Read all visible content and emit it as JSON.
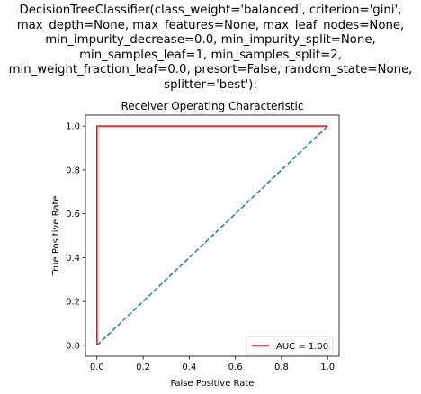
{
  "figure": {
    "suptitle_lines": [
      "DecisionTreeClassifier(class_weight='balanced', criterion='gini',",
      "max_depth=None, max_features=None, max_leaf_nodes=None,",
      "min_impurity_decrease=0.0, min_impurity_split=None,",
      "min_samples_leaf=1, min_samples_split=2,",
      "min_weight_fraction_leaf=0.0, presort=False, random_state=None,",
      "splitter='best'):"
    ]
  },
  "chart_data": {
    "type": "line",
    "title": "Receiver Operating Characteristic",
    "xlabel": "False Positive Rate",
    "ylabel": "True Positive Rate",
    "xlim": [
      -0.05,
      1.05
    ],
    "ylim": [
      -0.05,
      1.05
    ],
    "xticks": [
      0.0,
      0.2,
      0.4,
      0.6,
      0.8,
      1.0
    ],
    "yticks": [
      0.0,
      0.2,
      0.4,
      0.6,
      0.8,
      1.0
    ],
    "xtick_labels": [
      "0.0",
      "0.2",
      "0.4",
      "0.6",
      "0.8",
      "1.0"
    ],
    "ytick_labels": [
      "0.0",
      "0.2",
      "0.4",
      "0.6",
      "0.8",
      "1.0"
    ],
    "grid": false,
    "legend_position": "lower-right",
    "series": [
      {
        "name": "AUC = 1.00",
        "x": [
          0.0,
          0.0,
          1.0
        ],
        "y": [
          0.0,
          1.0,
          1.0
        ],
        "color": "#ff0000",
        "style": "solid"
      },
      {
        "x": [
          0.0,
          1.0
        ],
        "y": [
          0.0,
          1.0
        ],
        "color": "#1f77b4",
        "style": "dashed"
      }
    ]
  }
}
